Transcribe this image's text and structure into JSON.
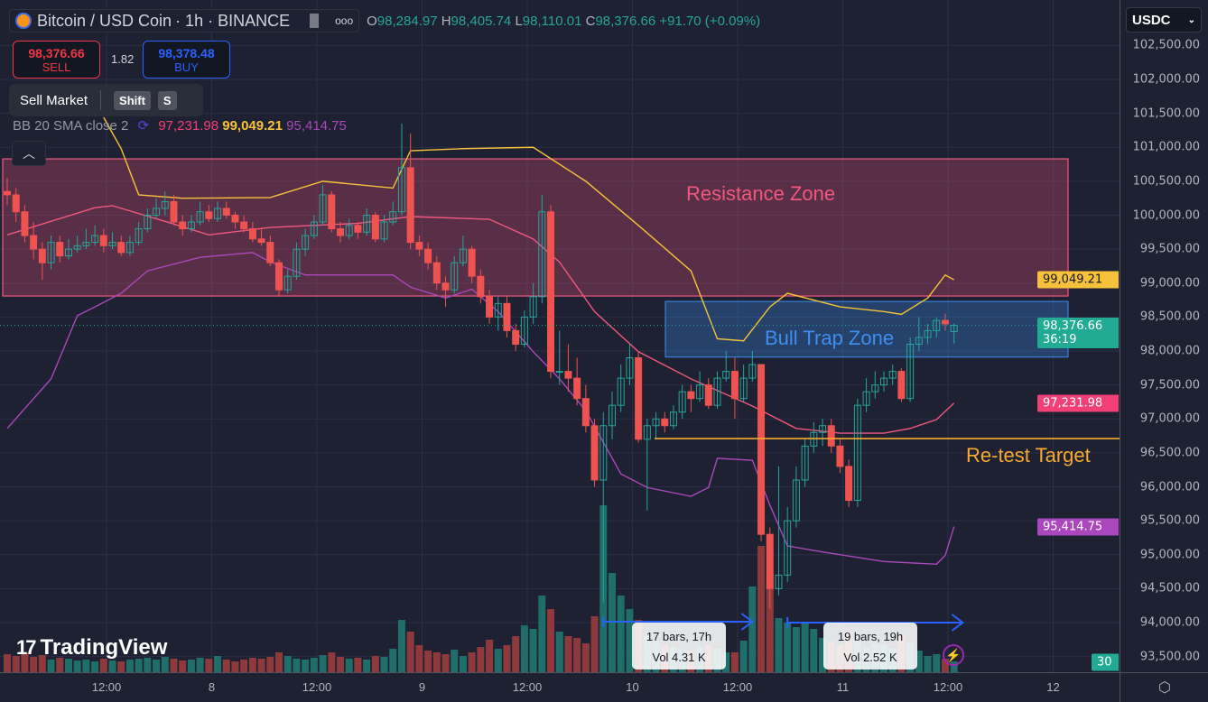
{
  "header": {
    "symbol": "Bitcoin / USD Coin",
    "interval_exchange": "· 1h · BINANCE",
    "ohlc": {
      "open_label": "O",
      "open": "98,284.97",
      "high_label": "H",
      "high": "98,405.74",
      "low_label": "L",
      "low": "98,110.01",
      "close_label": "C",
      "close": "98,376.66",
      "change": "+91.70 (+0.09%)"
    }
  },
  "trade": {
    "sell_price": "98,376.66",
    "sell_label": "SELL",
    "spread": "1.82",
    "buy_price": "98,378.48",
    "buy_label": "BUY",
    "sell_market_label": "Sell Market",
    "key1": "Shift",
    "key2": "S"
  },
  "indicator": {
    "name": "BB 20 SMA close 2",
    "basis": "97,231.98",
    "upper": "99,049.21",
    "lower": "95,414.75"
  },
  "axis": {
    "currency": "USDC",
    "price_ticks": [
      "102,500.00",
      "102,000.00",
      "101,500.00",
      "101,000.00",
      "100,500.00",
      "100,000.00",
      "99,500.00",
      "99,000.00",
      "98,500.00",
      "98,000.00",
      "97,500.00",
      "97,000.00",
      "96,500.00",
      "96,000.00",
      "95,500.00",
      "95,000.00",
      "94,500.00",
      "94,000.00",
      "93,500.00"
    ],
    "time_ticks": [
      "12:00",
      "8",
      "12:00",
      "9",
      "12:00",
      "10",
      "12:00",
      "11",
      "12:00",
      "12"
    ],
    "labels": {
      "upper": {
        "text": "99,049.21",
        "color": "#f7c23b"
      },
      "last": {
        "text": "98,376.66",
        "countdown": "36:19",
        "color": "#22ab94"
      },
      "basis": {
        "text": "97,231.98",
        "color": "#f23f78"
      },
      "lower": {
        "text": "95,414.75",
        "color": "#ab47bc"
      },
      "volume": {
        "text": "30",
        "color": "#22ab94"
      }
    }
  },
  "annotations": {
    "resistance": {
      "label": "Resistance Zone",
      "from": 98810,
      "to": 100830,
      "color": "#f2577f"
    },
    "bull_trap": {
      "label": "Bull Trap Zone",
      "from": 97910,
      "to": 98730,
      "color": "#3d8ef0"
    },
    "retest": {
      "label": "Re-test Target",
      "price": 96710,
      "color": "#f7a930"
    },
    "measure1": {
      "bars": "17 bars, 17h",
      "vol": "Vol 4.31 K"
    },
    "measure2": {
      "bars": "19 bars, 19h",
      "vol": "Vol 2.52 K"
    }
  },
  "branding": {
    "logo": "TradingView"
  },
  "colors": {
    "up": "#26a69a",
    "down": "#ef5350",
    "vol_up": "#1f6e6a",
    "vol_down": "#8e3a3d",
    "grid": "#2a2e48",
    "bg": "#1e2131"
  },
  "chart_data": {
    "type": "candlestick",
    "ylim": [
      93300,
      102700
    ],
    "candles": [
      [
        100350,
        100550,
        100150,
        100300
      ],
      [
        100300,
        100400,
        99900,
        100050
      ],
      [
        100050,
        100150,
        99600,
        99700
      ],
      [
        99700,
        99900,
        99350,
        99500
      ],
      [
        99500,
        99600,
        99050,
        99300
      ],
      [
        99300,
        99700,
        99200,
        99600
      ],
      [
        99600,
        99700,
        99300,
        99400
      ],
      [
        99400,
        99650,
        99350,
        99500
      ],
      [
        99500,
        99700,
        99450,
        99550
      ],
      [
        99550,
        99800,
        99500,
        99600
      ],
      [
        99600,
        99850,
        99550,
        99700
      ],
      [
        99700,
        99800,
        99450,
        99550
      ],
      [
        99550,
        99750,
        99500,
        99600
      ],
      [
        99600,
        99700,
        99400,
        99450
      ],
      [
        99450,
        99700,
        99400,
        99600
      ],
      [
        99600,
        99900,
        99550,
        99800
      ],
      [
        99800,
        100100,
        99750,
        100000
      ],
      [
        100000,
        100250,
        99950,
        100100
      ],
      [
        100100,
        100350,
        100000,
        100200
      ],
      [
        100200,
        100300,
        99850,
        99900
      ],
      [
        99900,
        100000,
        99700,
        99800
      ],
      [
        99800,
        100000,
        99750,
        99900
      ],
      [
        99900,
        100200,
        99850,
        100050
      ],
      [
        100050,
        100150,
        99900,
        99950
      ],
      [
        99950,
        100200,
        99900,
        100100
      ],
      [
        100100,
        100200,
        99950,
        100000
      ],
      [
        100000,
        100050,
        99800,
        99900
      ],
      [
        99900,
        100000,
        99750,
        99800
      ],
      [
        99800,
        99900,
        99600,
        99650
      ],
      [
        99650,
        99800,
        99550,
        99600
      ],
      [
        99600,
        99700,
        99250,
        99300
      ],
      [
        99300,
        99350,
        98800,
        98900
      ],
      [
        98900,
        99200,
        98850,
        99100
      ],
      [
        99100,
        99600,
        99050,
        99500
      ],
      [
        99500,
        99800,
        99400,
        99700
      ],
      [
        99700,
        100000,
        99650,
        99900
      ],
      [
        99900,
        100450,
        99850,
        100300
      ],
      [
        100300,
        100350,
        99750,
        99800
      ],
      [
        99800,
        99900,
        99600,
        99700
      ],
      [
        99700,
        99950,
        99650,
        99850
      ],
      [
        99850,
        99900,
        99650,
        99750
      ],
      [
        99750,
        100100,
        99700,
        100000
      ],
      [
        100000,
        100050,
        99600,
        99650
      ],
      [
        99650,
        100000,
        99600,
        99900
      ],
      [
        99900,
        100200,
        99850,
        100050
      ],
      [
        100050,
        101350,
        100000,
        100700
      ],
      [
        100700,
        101200,
        99500,
        99600
      ],
      [
        99600,
        99700,
        99400,
        99500
      ],
      [
        99500,
        99600,
        99200,
        99300
      ],
      [
        99300,
        99400,
        98900,
        99000
      ],
      [
        99000,
        99100,
        98650,
        98900
      ],
      [
        98900,
        99400,
        98850,
        99300
      ],
      [
        99300,
        99700,
        99250,
        99500
      ],
      [
        99500,
        99550,
        99000,
        99100
      ],
      [
        99100,
        99200,
        98700,
        98800
      ],
      [
        98800,
        98900,
        98400,
        98500
      ],
      [
        98500,
        98800,
        98300,
        98700
      ],
      [
        98700,
        98800,
        98200,
        98300
      ],
      [
        98300,
        98400,
        98000,
        98100
      ],
      [
        98100,
        98600,
        98050,
        98500
      ],
      [
        98500,
        99000,
        98400,
        98800
      ],
      [
        98800,
        100300,
        98700,
        100050
      ],
      [
        100050,
        100150,
        97600,
        97700
      ],
      [
        97700,
        98300,
        97500,
        97700
      ],
      [
        97700,
        98100,
        97400,
        97600
      ],
      [
        97600,
        97900,
        97200,
        97300
      ],
      [
        97300,
        97500,
        96800,
        96900
      ],
      [
        96900,
        97000,
        96000,
        96100
      ],
      [
        96100,
        97100,
        94300,
        96900
      ],
      [
        96900,
        97400,
        96700,
        97200
      ],
      [
        97200,
        97800,
        97100,
        97600
      ],
      [
        97600,
        98100,
        97500,
        97900
      ],
      [
        97900,
        98000,
        96650,
        96700
      ],
      [
        96700,
        97000,
        95650,
        96900
      ],
      [
        96900,
        97100,
        96700,
        97000
      ],
      [
        97000,
        97100,
        96800,
        96900
      ],
      [
        96900,
        97200,
        96850,
        97100
      ],
      [
        97100,
        97500,
        97000,
        97400
      ],
      [
        97400,
        97500,
        97100,
        97300
      ],
      [
        97300,
        97700,
        97250,
        97500
      ],
      [
        97500,
        97600,
        97150,
        97200
      ],
      [
        97200,
        97700,
        97150,
        97600
      ],
      [
        97600,
        98000,
        97550,
        97700
      ],
      [
        97700,
        97900,
        97000,
        97300
      ],
      [
        97300,
        97800,
        97250,
        97600
      ],
      [
        97600,
        98000,
        97550,
        97800
      ],
      [
        97800,
        97800,
        95200,
        95300
      ],
      [
        95300,
        95400,
        94200,
        94500
      ],
      [
        94500,
        96300,
        94400,
        94700
      ],
      [
        94700,
        95700,
        94600,
        95500
      ],
      [
        95500,
        96300,
        95400,
        96100
      ],
      [
        96100,
        96700,
        96000,
        96600
      ],
      [
        96600,
        96950,
        96500,
        96800
      ],
      [
        96800,
        97000,
        96600,
        96900
      ],
      [
        96900,
        97000,
        96500,
        96600
      ],
      [
        96600,
        96700,
        96200,
        96300
      ],
      [
        96300,
        96400,
        95700,
        95800
      ],
      [
        95800,
        97300,
        95700,
        97200
      ],
      [
        97200,
        97600,
        97100,
        97400
      ],
      [
        97400,
        97700,
        97300,
        97500
      ],
      [
        97500,
        97700,
        97400,
        97600
      ],
      [
        97600,
        97800,
        97500,
        97700
      ],
      [
        97700,
        97750,
        97250,
        97300
      ],
      [
        97300,
        98200,
        97250,
        98100
      ],
      [
        98100,
        98500,
        98000,
        98200
      ],
      [
        98200,
        98400,
        98100,
        98300
      ],
      [
        98300,
        98500,
        98200,
        98450
      ],
      [
        98450,
        98550,
        98300,
        98400
      ],
      [
        98285,
        98406,
        98110,
        98377
      ]
    ],
    "volume": [
      20,
      18,
      22,
      17,
      19,
      14,
      16,
      15,
      13,
      14,
      12,
      15,
      13,
      12,
      14,
      15,
      16,
      14,
      17,
      15,
      13,
      14,
      16,
      15,
      18,
      14,
      12,
      14,
      16,
      15,
      17,
      22,
      18,
      15,
      14,
      16,
      19,
      22,
      17,
      15,
      16,
      14,
      18,
      17,
      26,
      58,
      45,
      30,
      24,
      22,
      20,
      25,
      18,
      22,
      28,
      36,
      26,
      30,
      40,
      52,
      48,
      85,
      70,
      45,
      40,
      38,
      32,
      62,
      185,
      110,
      85,
      70,
      58,
      40,
      35,
      30,
      28,
      25,
      24,
      28,
      30,
      26,
      22,
      22,
      35,
      95,
      140,
      110,
      60,
      55,
      50,
      56,
      48,
      38,
      34,
      30,
      45,
      36,
      28,
      32,
      30,
      26,
      40,
      33,
      24,
      18,
      20,
      15,
      12
    ],
    "bollinger": {
      "upper": [
        [
          11,
          101440
        ],
        [
          13,
          100980
        ],
        [
          15,
          100300
        ],
        [
          20,
          100250
        ],
        [
          30,
          100260
        ],
        [
          36,
          100500
        ],
        [
          44,
          100400
        ],
        [
          46,
          100950
        ],
        [
          52,
          100980
        ],
        [
          60,
          101000
        ],
        [
          66,
          100500
        ],
        [
          72,
          99850
        ],
        [
          78,
          99180
        ],
        [
          81,
          98180
        ],
        [
          84,
          98150
        ],
        [
          87,
          98650
        ],
        [
          89,
          98850
        ],
        [
          95,
          98650
        ],
        [
          100,
          98580
        ],
        [
          102,
          98540
        ],
        [
          105,
          98780
        ],
        [
          107,
          99120
        ],
        [
          108,
          99049
        ]
      ],
      "basis": [
        [
          0,
          99710
        ],
        [
          10,
          100110
        ],
        [
          12,
          100140
        ],
        [
          18,
          99910
        ],
        [
          23,
          99710
        ],
        [
          30,
          99820
        ],
        [
          40,
          99880
        ],
        [
          46,
          99980
        ],
        [
          55,
          99940
        ],
        [
          60,
          99650
        ],
        [
          63,
          99310
        ],
        [
          67,
          98580
        ],
        [
          72,
          97990
        ],
        [
          78,
          97590
        ],
        [
          85,
          97190
        ],
        [
          90,
          96860
        ],
        [
          95,
          96790
        ],
        [
          100,
          96790
        ],
        [
          103,
          96860
        ],
        [
          106,
          96990
        ],
        [
          108,
          97232
        ]
      ],
      "lower": [
        [
          0,
          96860
        ],
        [
          5,
          97590
        ],
        [
          8,
          98520
        ],
        [
          10,
          98650
        ],
        [
          13,
          98850
        ],
        [
          16,
          99180
        ],
        [
          22,
          99380
        ],
        [
          28,
          99450
        ],
        [
          30,
          99310
        ],
        [
          34,
          99120
        ],
        [
          44,
          99120
        ],
        [
          46,
          98940
        ],
        [
          50,
          98780
        ],
        [
          53,
          98910
        ],
        [
          56,
          98580
        ],
        [
          60,
          97990
        ],
        [
          63,
          97590
        ],
        [
          66,
          97120
        ],
        [
          70,
          96190
        ],
        [
          73,
          95990
        ],
        [
          78,
          95860
        ],
        [
          80,
          95990
        ],
        [
          81,
          96420
        ],
        [
          85,
          96390
        ],
        [
          87,
          95730
        ],
        [
          89,
          95130
        ],
        [
          93,
          95040
        ],
        [
          100,
          94900
        ],
        [
          106,
          94860
        ],
        [
          107,
          94990
        ],
        [
          108,
          95415
        ]
      ]
    }
  }
}
